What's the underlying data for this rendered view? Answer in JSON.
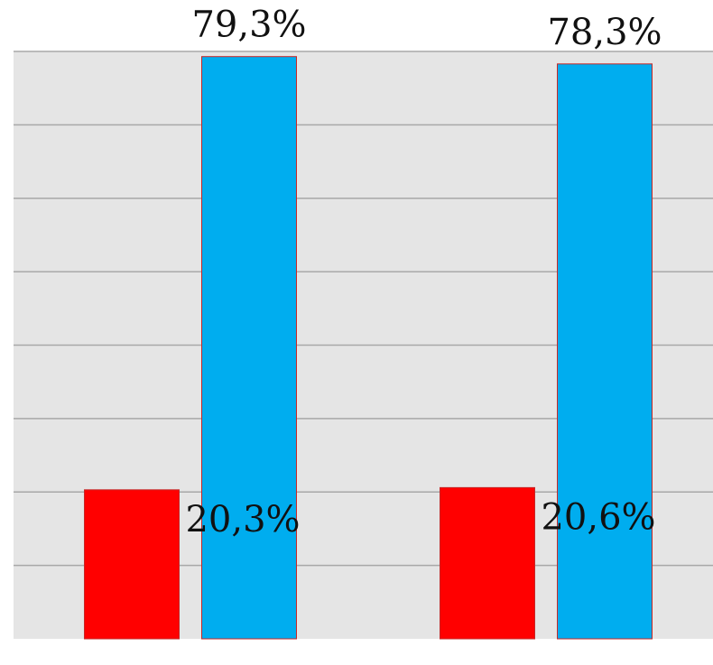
{
  "chart_data": {
    "type": "bar",
    "categories": [
      "",
      ""
    ],
    "series": [
      {
        "values": [
          20.3,
          20.6
        ],
        "labels": [
          "20,3%",
          "20,6%"
        ],
        "color": "#ff0000"
      },
      {
        "values": [
          79.3,
          78.3
        ],
        "labels": [
          "79,3%",
          "78,3%"
        ],
        "color": "#00adef"
      }
    ],
    "title": "",
    "xlabel": "",
    "ylabel": "",
    "ylim": [
      0,
      80
    ],
    "grid": true,
    "legend": "none",
    "colors": {
      "plot_background": "#e5e5e5",
      "gridline": "#a8a8a8",
      "bar_border": "#c62828"
    }
  }
}
